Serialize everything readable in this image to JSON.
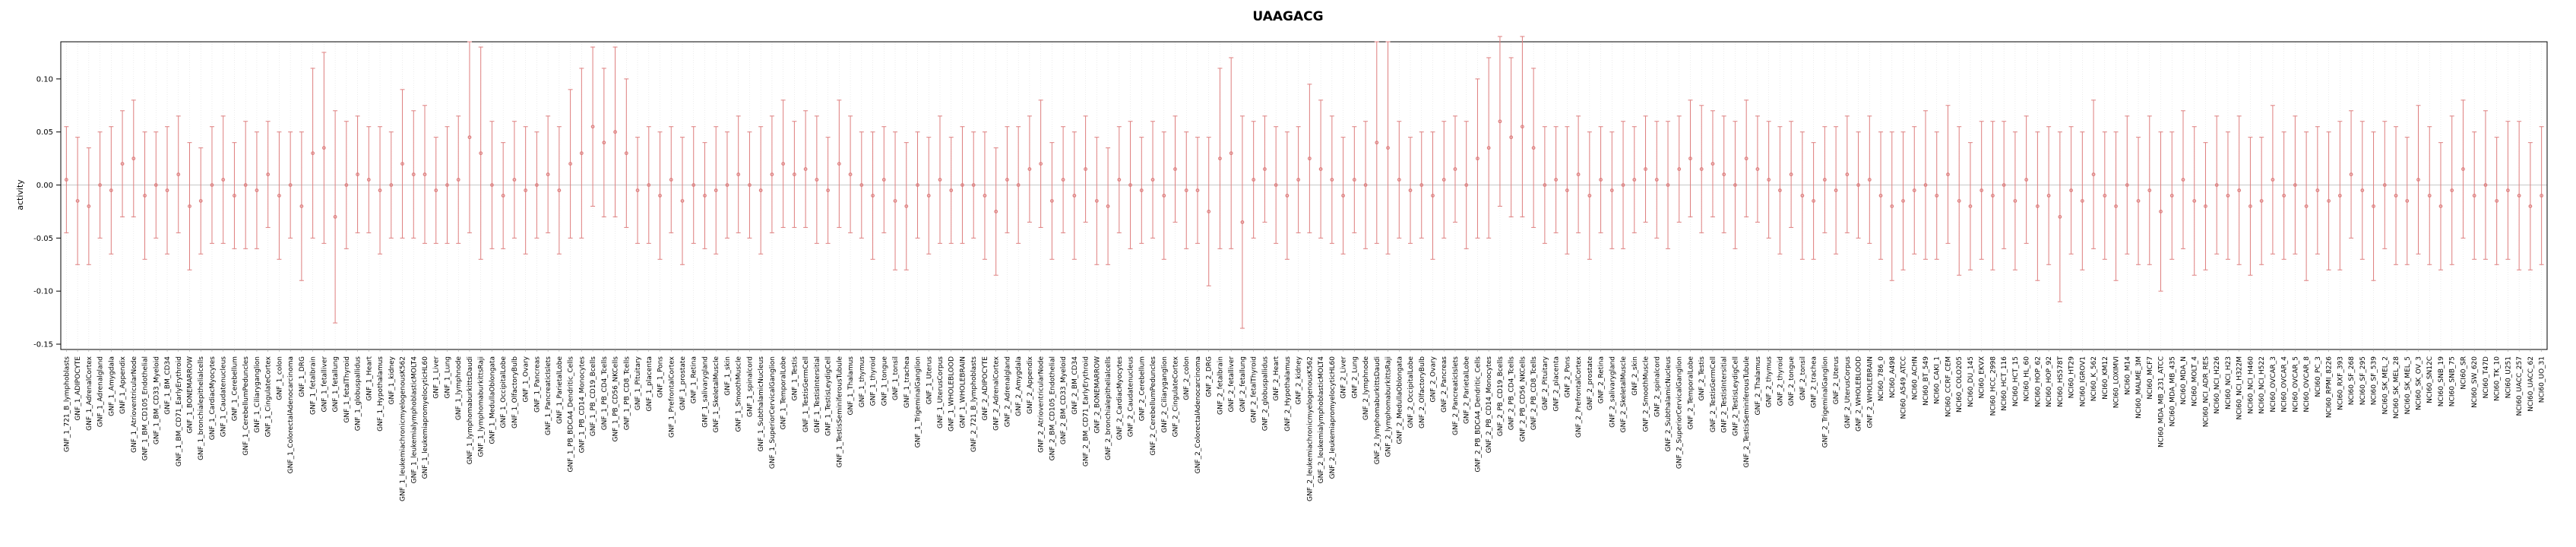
{
  "chart_data": {
    "type": "scatter",
    "subtype": "errorbar",
    "title": "UAAGACG",
    "xlabel": "",
    "ylabel": "activity",
    "ylim": [
      -0.155,
      0.135
    ],
    "yticks": [
      0.1,
      0.05,
      0.0,
      -0.05,
      -0.1,
      -0.15
    ],
    "grid": true,
    "legend": "none",
    "point_color": "#de7e7e",
    "grid_color": "#e0e0e0",
    "zero_line_color": "#c8c8c8",
    "axis_color": "#000000",
    "categories": [
      "GNF_1_721_B_lymphoblasts",
      "GNF_1_ADIPOCYTE",
      "GNF_1_AdrenalCortex",
      "GNF_1_Adrenalgland",
      "GNF_1_Amygdala",
      "GNF_1_Appendix",
      "GNF_1_AtrioventricularNode",
      "GNF_1_BM_CD105_Endothelial",
      "GNF_1_BM_CD33_Myeloid",
      "GNF_1_BM_CD34",
      "GNF_1_BM_CD71_EarlyErythroid",
      "GNF_1_BONEMARROW",
      "GNF_1_bronchialepithelialcells",
      "GNF_1_CardiacMyocytes",
      "GNF_1_Caudatenucleus",
      "GNF_1_Cerebellum",
      "GNF_1_CerebellumPeduncles",
      "GNF_1_Ciliaryganglion",
      "GNF_1_CingulateCortex",
      "GNF_1_colon",
      "GNF_1_ColorectalAdenocarcinoma",
      "GNF_1_DRG",
      "GNF_1_fetalbrain",
      "GNF_1_fetalliver",
      "GNF_1_fetallung",
      "GNF_1_fetalThyroid",
      "GNF_1_globuspallidus",
      "GNF_1_Heart",
      "GNF_1_Hypothalamus",
      "GNF_1_kidney",
      "GNF_1_leukemiachronicmyelogenousK562",
      "GNF_1_leukemialymphoblasticMOLT4",
      "GNF_1_leukemiapromyelocyticHL60",
      "GNF_1_Liver",
      "GNF_1_Lung",
      "GNF_1_lymphnode",
      "GNF_1_lymphomaburkittsDaudi",
      "GNF_1_lymphomaburkittsRaji",
      "GNF_1_MedullaOblongata",
      "GNF_1_OccipitalLobe",
      "GNF_1_OlfactoryBulb",
      "GNF_1_Ovary",
      "GNF_1_Pancreas",
      "GNF_1_PancreaticIslets",
      "GNF_1_ParietalLobe",
      "GNF_1_PB_BDCA4_Dendritic_Cells",
      "GNF_1_PB_CD14_Monocytes",
      "GNF_1_PB_CD19_Bcells",
      "GNF_1_PB_CD4_Tcells",
      "GNF_1_PB_CD56_NKCells",
      "GNF_1_PB_CD8_Tcells",
      "GNF_1_Pituitary",
      "GNF_1_placenta",
      "GNF_1_Pons",
      "GNF_1_PrefrontalCortex",
      "GNF_1_prostate",
      "GNF_1_Retina",
      "GNF_1_salivarygland",
      "GNF_1_SkeletalMuscle",
      "GNF_1_skin",
      "GNF_1_SmoothMuscle",
      "GNF_1_spinalcord",
      "GNF_1_SubthalamicNucleus",
      "GNF_1_SuperiorCervicalGanglion",
      "GNF_1_TemporalLobe",
      "GNF_1_Testis",
      "GNF_1_TestisGermCell",
      "GNF_1_TestisIntersitial",
      "GNF_1_TestisLeydigCell",
      "GNF_1_TestisSeminiferousTubule",
      "GNF_1_Thalamus",
      "GNF_1_thymus",
      "GNF_1_thyroid",
      "GNF_1_tongue",
      "GNF_1_tonsil",
      "GNF_1_trachea",
      "GNF_1_TrigeminalGanglion",
      "GNF_1_Uterus",
      "GNF_1_UterusCorpus",
      "GNF_1_WHOLEBLOOD",
      "GNF_1_WHOLEBRAIN",
      "GNF_2_721_B_lymphoblasts",
      "GNF_2_ADIPOCYTE",
      "GNF_2_AdrenalCortex",
      "GNF_2_Adrenalgland",
      "GNF_2_Amygdala",
      "GNF_2_Appendix",
      "GNF_2_AtrioventricularNode",
      "GNF_2_BM_CD105_Endothelial",
      "GNF_2_BM_CD33_Myeloid",
      "GNF_2_BM_CD34",
      "GNF_2_BM_CD71_EarlyErythroid",
      "GNF_2_BONEMARROW",
      "GNF_2_bronchialepithelialcells",
      "GNF_2_CardiacMyocytes",
      "GNF_2_Caudatenucleus",
      "GNF_2_Cerebellum",
      "GNF_2_CerebellumPeduncles",
      "GNF_2_Ciliaryganglion",
      "GNF_2_CingulateCortex",
      "GNF_2_colon",
      "GNF_2_ColorectalAdenocarcinoma",
      "GNF_2_DRG",
      "GNF_2_fetalbrain",
      "GNF_2_fetalliver",
      "GNF_2_fetallung",
      "GNF_2_fetalThyroid",
      "GNF_2_globuspallidus",
      "GNF_2_Heart",
      "GNF_2_Hypothalamus",
      "GNF_2_kidney",
      "GNF_2_leukemiachronicmyelogenousK562",
      "GNF_2_leukemialymphoblasticMOLT4",
      "GNF_2_leukemiapromyelocyticHL60",
      "GNF_2_Liver",
      "GNF_2_Lung",
      "GNF_2_lymphnode",
      "GNF_2_lymphomaburkittsDaudi",
      "GNF_2_lymphomaburkittsRaji",
      "GNF_2_MedullaOblongata",
      "GNF_2_OccipitalLobe",
      "GNF_2_OlfactoryBulb",
      "GNF_2_Ovary",
      "GNF_2_Pancreas",
      "GNF_2_PancreaticIslets",
      "GNF_2_ParietalLobe",
      "GNF_2_PB_BDCA4_Dendritic_Cells",
      "GNF_2_PB_CD14_Monocytes",
      "GNF_2_PB_CD19_Bcells",
      "GNF_2_PB_CD4_Tcells",
      "GNF_2_PB_CD56_NKCells",
      "GNF_2_PB_CD8_Tcells",
      "GNF_2_Pituitary",
      "GNF_2_placenta",
      "GNF_2_Pons",
      "GNF_2_PrefrontalCortex",
      "GNF_2_prostate",
      "GNF_2_Retina",
      "GNF_2_salivarygland",
      "GNF_2_SkeletalMuscle",
      "GNF_2_skin",
      "GNF_2_SmoothMuscle",
      "GNF_2_spinalcord",
      "GNF_2_SubthalamicNucleus",
      "GNF_2_SuperiorCervicalGanglion",
      "GNF_2_TemporalLobe",
      "GNF_2_Testis",
      "GNF_2_TestisGermCell",
      "GNF_2_TestisIntersitial",
      "GNF_2_TestisLeydigCell",
      "GNF_2_TestisSeminiferousTubule",
      "GNF_2_Thalamus",
      "GNF_2_thymus",
      "GNF_2_thyroid",
      "GNF_2_tongue",
      "GNF_2_tonsil",
      "GNF_2_trachea",
      "GNF_2_TrigeminalGanglion",
      "GNF_2_Uterus",
      "GNF_2_UterusCorpus",
      "GNF_2_WHOLEBLOOD",
      "GNF_2_WHOLEBRAIN",
      "NCI60_786_0",
      "NCI60_A498",
      "NCI60_A549_ATCC",
      "NCI60_ACHN",
      "NCI60_BT_549",
      "NCI60_CAKI_1",
      "NCI60_CCRF_CEM",
      "NCI60_COLO205",
      "NCI60_DU_145",
      "NCI60_EKVX",
      "NCI60_HCC_2998",
      "NCI60_HCT_116",
      "NCI60_HCT_15",
      "NCI60_HL_60",
      "NCI60_HOP_62",
      "NCI60_HOP_92",
      "NCI60_HS578T",
      "NCI60_HT29",
      "NCI60_IGROV1",
      "NCI60_K_562",
      "NCI60_KM12",
      "NCI60_LOXIMVI",
      "NCI60_M14",
      "NCI60_MALME_3M",
      "NCI60_MCF7",
      "NCI60_MDA_MB_231_ATCC",
      "NCI60_MDA_MB_435",
      "NCI60_MDA_N",
      "NCI60_MOLT_4",
      "NCI60_NCI_ADR_RES",
      "NCI60_NCI_H226",
      "NCI60_NCI_H23",
      "NCI60_NCI_H322M",
      "NCI60_NCI_H460",
      "NCI60_NCI_H522",
      "NCI60_OVCAR_3",
      "NCI60_OVCAR_4",
      "NCI60_OVCAR_5",
      "NCI60_OVCAR_8",
      "NCI60_PC_3",
      "NCI60_RPMI_8226",
      "NCI60_RXF_393",
      "NCI60_SF_268",
      "NCI60_SF_295",
      "NCI60_SF_539",
      "NCI60_SK_MEL_2",
      "NCI60_SK_MEL_28",
      "NCI60_SK_MEL_5",
      "NCI60_SK_OV_3",
      "NCI60_SN12C",
      "NCI60_SNB_19",
      "NCI60_SNB_75",
      "NCI60_SR",
      "NCI60_SW_620",
      "NCI60_T47D",
      "NCI60_TK_10",
      "NCI60_U251",
      "NCI60_UACC_257",
      "NCI60_UACC_62",
      "NCI60_UO_31"
    ],
    "values": [
      0.005,
      -0.015,
      -0.02,
      0.0,
      -0.005,
      0.02,
      0.025,
      -0.01,
      0.0,
      -0.005,
      0.01,
      -0.02,
      -0.015,
      0.0,
      0.005,
      -0.01,
      0.0,
      -0.005,
      0.01,
      -0.01,
      0.0,
      -0.02,
      0.03,
      0.035,
      -0.03,
      0.0,
      0.01,
      0.005,
      -0.005,
      0.0,
      0.02,
      0.01,
      0.01,
      -0.005,
      0.0,
      0.005,
      0.045,
      0.03,
      0.0,
      -0.01,
      0.005,
      -0.005,
      0.0,
      0.01,
      -0.005,
      0.02,
      0.03,
      0.055,
      0.04,
      0.05,
      0.03,
      -0.005,
      0.0,
      -0.01,
      0.005,
      -0.015,
      0.0,
      -0.01,
      -0.005,
      0.0,
      0.01,
      0.0,
      -0.005,
      0.01,
      0.02,
      0.01,
      0.015,
      0.005,
      -0.005,
      0.02,
      0.01,
      0.0,
      -0.01,
      0.005,
      -0.015,
      -0.02,
      0.0,
      -0.01,
      0.005,
      -0.005,
      0.0,
      0.0,
      -0.01,
      -0.025,
      0.005,
      0.0,
      0.015,
      0.02,
      -0.015,
      0.005,
      -0.01,
      0.015,
      -0.015,
      -0.02,
      0.005,
      0.0,
      -0.005,
      0.005,
      -0.01,
      0.015,
      -0.005,
      -0.005,
      -0.025,
      0.025,
      0.03,
      -0.035,
      0.005,
      0.015,
      0.0,
      -0.01,
      0.005,
      0.025,
      0.015,
      0.005,
      -0.01,
      0.005,
      0.0,
      0.04,
      0.035,
      0.005,
      -0.005,
      0.0,
      -0.01,
      0.005,
      0.015,
      0.0,
      0.025,
      0.035,
      0.06,
      0.045,
      0.055,
      0.035,
      0.0,
      0.005,
      -0.005,
      0.01,
      -0.01,
      0.005,
      -0.005,
      0.0,
      0.005,
      0.015,
      0.005,
      0.0,
      0.015,
      0.025,
      0.015,
      0.02,
      0.01,
      0.0,
      0.025,
      0.015,
      0.005,
      -0.005,
      0.01,
      -0.01,
      -0.015,
      0.005,
      -0.005,
      0.01,
      0.0,
      0.005,
      -0.01,
      -0.02,
      -0.015,
      -0.005,
      0.0,
      -0.01,
      0.01,
      -0.015,
      -0.02,
      -0.005,
      -0.01,
      0.0,
      -0.015,
      0.005,
      -0.02,
      -0.01,
      -0.03,
      -0.005,
      -0.015,
      0.01,
      -0.01,
      -0.02,
      0.0,
      -0.015,
      -0.005,
      -0.025,
      -0.01,
      0.005,
      -0.015,
      -0.02,
      0.0,
      -0.01,
      -0.005,
      -0.02,
      -0.015,
      0.005,
      -0.01,
      0.0,
      -0.02,
      -0.005,
      -0.015,
      -0.01,
      0.01,
      -0.005,
      -0.02,
      0.0,
      -0.01,
      -0.015,
      0.005,
      -0.01,
      -0.02,
      -0.005,
      0.015,
      -0.01,
      0.0,
      -0.015,
      -0.005,
      -0.01,
      -0.02,
      -0.01
    ],
    "errors": [
      0.05,
      0.06,
      0.055,
      0.05,
      0.06,
      0.05,
      0.055,
      0.06,
      0.05,
      0.06,
      0.055,
      0.06,
      0.05,
      0.055,
      0.06,
      0.05,
      0.06,
      0.055,
      0.05,
      0.06,
      0.05,
      0.07,
      0.08,
      0.09,
      0.1,
      0.06,
      0.055,
      0.05,
      0.06,
      0.05,
      0.07,
      0.06,
      0.065,
      0.05,
      0.055,
      0.06,
      0.09,
      0.1,
      0.06,
      0.05,
      0.055,
      0.06,
      0.05,
      0.055,
      0.06,
      0.07,
      0.08,
      0.075,
      0.07,
      0.08,
      0.07,
      0.05,
      0.055,
      0.06,
      0.05,
      0.06,
      0.055,
      0.05,
      0.06,
      0.05,
      0.055,
      0.05,
      0.06,
      0.055,
      0.06,
      0.05,
      0.055,
      0.06,
      0.05,
      0.06,
      0.055,
      0.05,
      0.06,
      0.05,
      0.065,
      0.06,
      0.05,
      0.055,
      0.06,
      0.05,
      0.055,
      0.05,
      0.06,
      0.06,
      0.05,
      0.055,
      0.05,
      0.06,
      0.055,
      0.05,
      0.06,
      0.05,
      0.06,
      0.055,
      0.05,
      0.06,
      0.05,
      0.055,
      0.06,
      0.05,
      0.055,
      0.05,
      0.07,
      0.085,
      0.09,
      0.1,
      0.055,
      0.05,
      0.055,
      0.06,
      0.05,
      0.07,
      0.065,
      0.06,
      0.055,
      0.05,
      0.06,
      0.095,
      0.1,
      0.055,
      0.05,
      0.05,
      0.06,
      0.055,
      0.05,
      0.06,
      0.075,
      0.085,
      0.08,
      0.075,
      0.085,
      0.075,
      0.055,
      0.05,
      0.06,
      0.055,
      0.06,
      0.05,
      0.055,
      0.06,
      0.05,
      0.05,
      0.055,
      0.06,
      0.05,
      0.055,
      0.06,
      0.05,
      0.055,
      0.06,
      0.055,
      0.05,
      0.055,
      0.06,
      0.05,
      0.06,
      0.055,
      0.05,
      0.06,
      0.055,
      0.05,
      0.06,
      0.06,
      0.07,
      0.065,
      0.06,
      0.07,
      0.06,
      0.065,
      0.07,
      0.06,
      0.065,
      0.07,
      0.06,
      0.065,
      0.06,
      0.07,
      0.065,
      0.08,
      0.06,
      0.065,
      0.07,
      0.06,
      0.07,
      0.065,
      0.06,
      0.07,
      0.075,
      0.06,
      0.065,
      0.07,
      0.06,
      0.065,
      0.06,
      0.07,
      0.065,
      0.06,
      0.07,
      0.06,
      0.065,
      0.07,
      0.06,
      0.065,
      0.07,
      0.06,
      0.065,
      0.07,
      0.06,
      0.065,
      0.06,
      0.07,
      0.065,
      0.06,
      0.07,
      0.065,
      0.06,
      0.07,
      0.06,
      0.065,
      0.07,
      0.06,
      0.065
    ]
  }
}
